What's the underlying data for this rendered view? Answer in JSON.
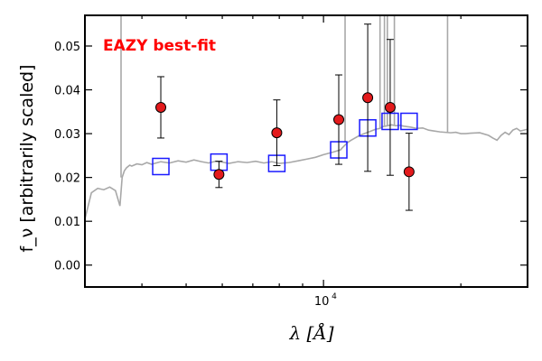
{
  "chart_data": {
    "type": "scatter",
    "xscale": "log",
    "xlim": [
      3000,
      28000
    ],
    "ylim": [
      -0.005,
      0.057
    ],
    "xticks": [
      {
        "value": 10000,
        "label_base": "10",
        "label_exp": "4"
      }
    ],
    "yticks": [
      0.0,
      0.01,
      0.02,
      0.03,
      0.04,
      0.05
    ],
    "ytick_labels": [
      "0.00",
      "0.01",
      "0.02",
      "0.03",
      "0.04",
      "0.05"
    ],
    "xlabel": "λ [Å]",
    "ylabel": "f_ν [arbitrarily scaled]",
    "annotation": "EAZY best-fit",
    "colors": {
      "model": "#a8a8a8",
      "obs_fill": "#e31a1c",
      "fit_box": "#1a1aff",
      "annotation": "#ff0000"
    },
    "series": [
      {
        "kind": "observed",
        "x": [
          4400,
          5900,
          7900,
          10800,
          12500,
          14000,
          15400
        ],
        "y": [
          0.036,
          0.0207,
          0.0302,
          0.0332,
          0.0382,
          0.036,
          0.0213
        ],
        "yerr_low": [
          0.007,
          0.003,
          0.0075,
          0.0102,
          0.0168,
          0.0155,
          0.0088
        ],
        "yerr_high": [
          0.007,
          0.003,
          0.0075,
          0.0102,
          0.0168,
          0.0155,
          0.0088
        ]
      },
      {
        "kind": "model-photometry",
        "x": [
          4400,
          5900,
          7900,
          10800,
          12500,
          14000,
          15400
        ],
        "y": [
          0.0225,
          0.0235,
          0.0232,
          0.0263,
          0.0313,
          0.0328,
          0.0328
        ]
      },
      {
        "kind": "model-spectrum",
        "x": [
          3000,
          3100,
          3200,
          3300,
          3400,
          3500,
          3580,
          3620,
          3660,
          3700,
          3760,
          3800,
          3900,
          4000,
          4100,
          4200,
          4400,
          4600,
          4800,
          5000,
          5200,
          5400,
          5600,
          5800,
          6000,
          6200,
          6500,
          6800,
          7100,
          7400,
          7700,
          8000,
          8400,
          8800,
          9200,
          9600,
          10000,
          10500,
          10900,
          11000,
          11100,
          11300,
          11500,
          12000,
          12500,
          13000,
          13300,
          13500,
          13800,
          14100,
          14400,
          14700,
          15000,
          15500,
          16000,
          16500,
          17000,
          17500,
          18000,
          18500,
          19000,
          19500,
          20000,
          20500,
          21000,
          22000,
          23000,
          23500,
          24000,
          24500,
          25000,
          25500,
          26000,
          26500,
          27000,
          28000
        ],
        "y": [
          0.0105,
          0.0165,
          0.0175,
          0.0172,
          0.0178,
          0.017,
          0.0135,
          0.02,
          0.0215,
          0.0222,
          0.0228,
          0.0226,
          0.0231,
          0.0229,
          0.0234,
          0.023,
          0.0236,
          0.0233,
          0.0238,
          0.0235,
          0.024,
          0.0236,
          0.0233,
          0.0237,
          0.0235,
          0.0232,
          0.0236,
          0.0234,
          0.0237,
          0.0233,
          0.0236,
          0.0232,
          0.0234,
          0.0238,
          0.0242,
          0.0246,
          0.0252,
          0.0258,
          0.0263,
          0.0268,
          0.0272,
          0.028,
          0.0285,
          0.0296,
          0.0303,
          0.031,
          0.0312,
          0.0316,
          0.0318,
          0.032,
          0.0318,
          0.0319,
          0.0317,
          0.0315,
          0.0312,
          0.0313,
          0.0308,
          0.0306,
          0.0304,
          0.0303,
          0.0302,
          0.0303,
          0.03,
          0.03,
          0.0301,
          0.0302,
          0.0296,
          0.029,
          0.0285,
          0.0296,
          0.0303,
          0.0298,
          0.0308,
          0.0312,
          0.0306,
          0.031
        ],
        "emission_lines": [
          {
            "x": 3600,
            "y": 0.06
          },
          {
            "x": 11150,
            "y": 0.06
          },
          {
            "x": 13300,
            "y": 0.06
          },
          {
            "x": 13600,
            "y": 0.06
          },
          {
            "x": 13800,
            "y": 0.06
          },
          {
            "x": 14300,
            "y": 0.06
          },
          {
            "x": 18700,
            "y": 0.06
          }
        ]
      }
    ]
  }
}
